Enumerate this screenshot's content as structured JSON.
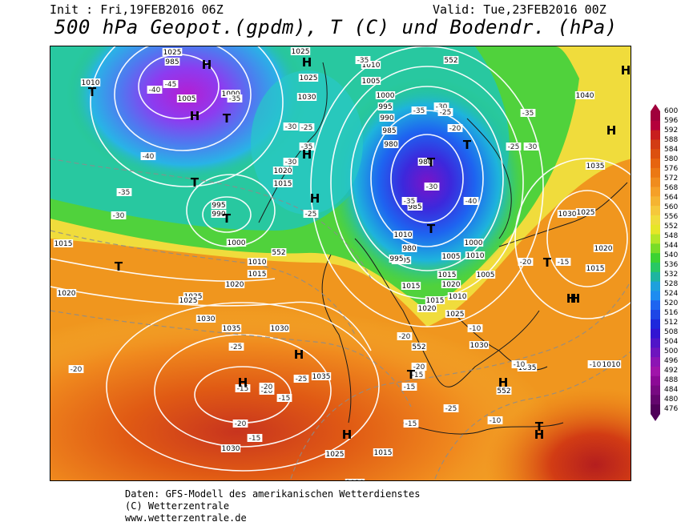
{
  "header": {
    "init_text": "Init : Fri,19FEB2016 06Z",
    "valid_text": "Valid: Tue,23FEB2016 00Z",
    "title": "500 hPa Geopot.(gpdm), T (C) und Bodendr. (hPa)"
  },
  "map": {
    "high_symbol": "H",
    "low_symbol": "T",
    "highs": [
      "H",
      "H",
      "H",
      "H",
      "H",
      "H",
      "H",
      "H",
      "H",
      "H",
      "H",
      "H",
      "H",
      "H"
    ],
    "lows": [
      "T",
      "T",
      "T",
      "T",
      "T",
      "T",
      "T",
      "T",
      "T",
      "T",
      "T"
    ],
    "pressure_labels": [
      "1000",
      "985",
      "1010",
      "1005",
      "1000",
      "1025",
      "1025",
      "1030",
      "1010",
      "1005",
      "1000",
      "995",
      "990",
      "985",
      "980",
      "980",
      "1020",
      "1015",
      "995",
      "990",
      "1000",
      "1010",
      "1015",
      "1020",
      "1025",
      "1015",
      "1020",
      "1025",
      "1030",
      "1035",
      "1030",
      "1035",
      "1030",
      "1025",
      "1020",
      "1015",
      "1005",
      "1010",
      "985",
      "980",
      "995",
      "1005",
      "1000",
      "1010",
      "1015",
      "1020",
      "1010",
      "1005",
      "1015",
      "1020",
      "1025",
      "1030",
      "1035",
      "1040",
      "1035",
      "1030",
      "1025",
      "1020",
      "1015",
      "1010",
      "1015",
      "1025"
    ],
    "temp_labels": [
      "-45",
      "-40",
      "-35",
      "-30",
      "-25",
      "-40",
      "-35",
      "-30",
      "-35",
      "-30",
      "-25",
      "-35",
      "-35",
      "-30",
      "-25",
      "-20",
      "-20",
      "-25",
      "-20",
      "-15",
      "-15",
      "-20",
      "-25",
      "-15",
      "-20",
      "-15",
      "-10",
      "-10",
      "-15",
      "-20",
      "-25",
      "-30",
      "-35",
      "-25",
      "-20",
      "-15",
      "-10",
      "-15",
      "-20",
      "-10",
      "-30",
      "-35",
      "-40"
    ],
    "geopot_labels": [
      "552",
      "552",
      "552",
      "552"
    ]
  },
  "colorbar": {
    "values": [
      "600",
      "596",
      "592",
      "588",
      "584",
      "580",
      "576",
      "572",
      "568",
      "564",
      "560",
      "556",
      "552",
      "548",
      "544",
      "540",
      "536",
      "532",
      "528",
      "524",
      "520",
      "516",
      "512",
      "508",
      "504",
      "500",
      "496",
      "492",
      "488",
      "484",
      "480",
      "476"
    ],
    "colors": [
      "#a0003c",
      "#b4003c",
      "#c81e1e",
      "#d23c14",
      "#dc500f",
      "#e6640f",
      "#eb7814",
      "#f08c1e",
      "#f5a028",
      "#f5b432",
      "#f5c83c",
      "#f0dc3c",
      "#e6e628",
      "#b4e628",
      "#78dc28",
      "#3cd232",
      "#28c864",
      "#1eb4a0",
      "#1ea0dc",
      "#1e8cf0",
      "#1e64f0",
      "#1e46e6",
      "#1e28dc",
      "#3214d2",
      "#5014c8",
      "#6e14be",
      "#8c14b4",
      "#a014aa",
      "#8c0a96",
      "#780a82",
      "#64066e",
      "#50005a"
    ]
  },
  "footer": {
    "line1": "Daten: GFS-Modell des amerikanischen Wetterdienstes",
    "line2": "(C) Wetterzentrale",
    "line3": "www.wetterzentrale.de"
  }
}
